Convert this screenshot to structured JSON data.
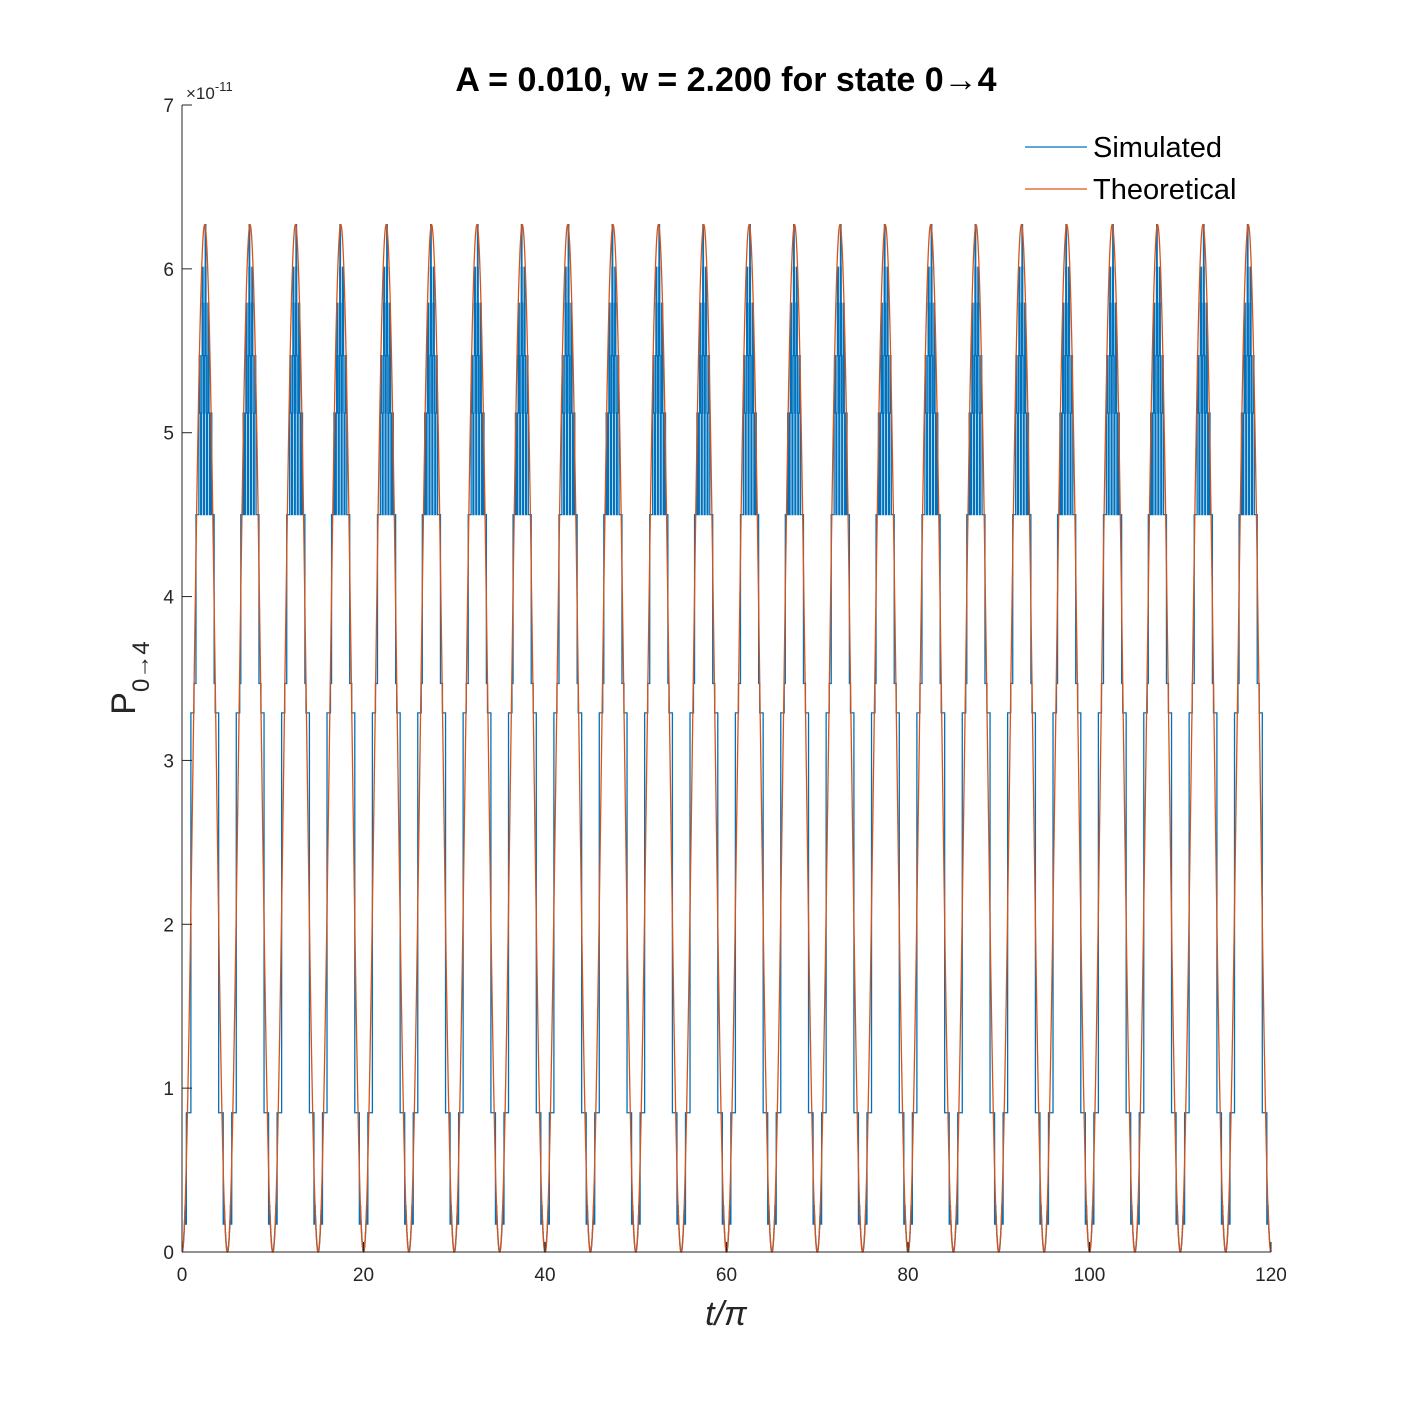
{
  "chart_data": {
    "type": "line",
    "title": "A = 0.010, w = 2.200 for state 0→4",
    "xlabel": "t/π",
    "ylabel": "P",
    "ylabel_subscript": "0→4",
    "y_multiplier": "×10",
    "y_exponent": "-11",
    "xlim": [
      0,
      120
    ],
    "ylim": [
      0,
      7
    ],
    "xticks": [
      "0",
      "20",
      "40",
      "60",
      "80",
      "100",
      "120"
    ],
    "yticks": [
      "0",
      "1",
      "2",
      "3",
      "4",
      "5",
      "6",
      "7"
    ],
    "legend_position": "top-right",
    "period": 5,
    "theoretical_peak": 6.27,
    "simulated_levels": [
      0.17,
      0.85,
      3.29,
      3.47,
      4.5,
      5.12,
      5.47,
      5.79,
      6.01,
      6.27
    ],
    "series": [
      {
        "name": "Simulated",
        "color": "#0072BD"
      },
      {
        "name": "Theoretical",
        "color": "#D95319"
      }
    ]
  }
}
